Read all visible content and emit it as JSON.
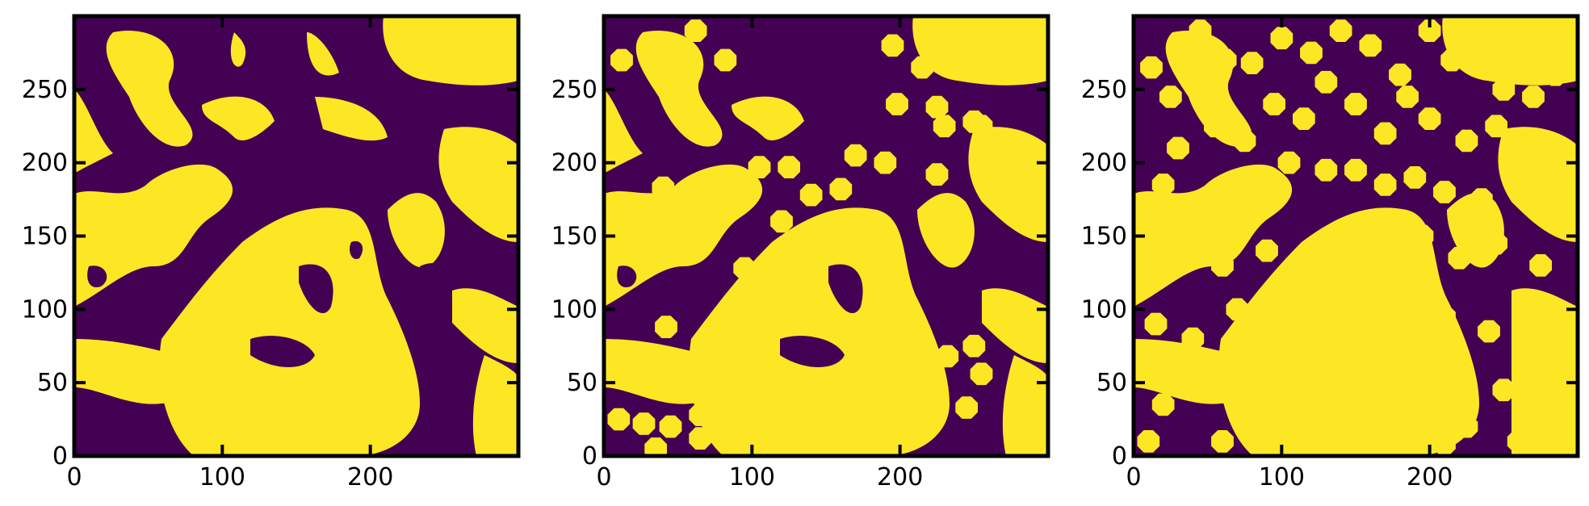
{
  "figure": {
    "panel_count": 3,
    "colors": {
      "background_phase": "#440154",
      "foreground_phase": "#fde725",
      "axes": "#000000"
    }
  },
  "chart_data": [
    {
      "type": "heatmap",
      "title": "",
      "xlabel": "",
      "ylabel": "",
      "xlim": [
        0,
        300
      ],
      "ylim": [
        0,
        300
      ],
      "xticks": [
        "0",
        "100",
        "200"
      ],
      "yticks": [
        "0",
        "50",
        "100",
        "150",
        "200",
        "250"
      ],
      "grid": false,
      "colormap_values": [
        0,
        1
      ],
      "particles": []
    },
    {
      "type": "heatmap",
      "title": "",
      "xlabel": "",
      "ylabel": "",
      "xlim": [
        0,
        300
      ],
      "ylim": [
        0,
        300
      ],
      "xticks": [
        "0",
        "100",
        "200"
      ],
      "yticks": [
        "0",
        "50",
        "100",
        "150",
        "200",
        "250"
      ],
      "grid": false,
      "colormap_values": [
        0,
        1
      ],
      "particles": [
        {
          "x": 12,
          "y": 270
        },
        {
          "x": 62,
          "y": 290
        },
        {
          "x": 82,
          "y": 270
        },
        {
          "x": 40,
          "y": 183
        },
        {
          "x": 80,
          "y": 183
        },
        {
          "x": 105,
          "y": 197
        },
        {
          "x": 125,
          "y": 197
        },
        {
          "x": 140,
          "y": 178
        },
        {
          "x": 160,
          "y": 182
        },
        {
          "x": 120,
          "y": 160
        },
        {
          "x": 170,
          "y": 205
        },
        {
          "x": 190,
          "y": 200
        },
        {
          "x": 195,
          "y": 280
        },
        {
          "x": 215,
          "y": 265
        },
        {
          "x": 198,
          "y": 240
        },
        {
          "x": 225,
          "y": 238
        },
        {
          "x": 230,
          "y": 225
        },
        {
          "x": 250,
          "y": 228
        },
        {
          "x": 225,
          "y": 192
        },
        {
          "x": 255,
          "y": 225
        },
        {
          "x": 105,
          "y": 115
        },
        {
          "x": 125,
          "y": 118
        },
        {
          "x": 120,
          "y": 130
        },
        {
          "x": 95,
          "y": 128
        },
        {
          "x": 42,
          "y": 88
        },
        {
          "x": 232,
          "y": 68
        },
        {
          "x": 250,
          "y": 75
        },
        {
          "x": 255,
          "y": 56
        },
        {
          "x": 245,
          "y": 33
        },
        {
          "x": 10,
          "y": 25
        },
        {
          "x": 27,
          "y": 22
        },
        {
          "x": 45,
          "y": 20
        },
        {
          "x": 65,
          "y": 28
        },
        {
          "x": 65,
          "y": 12
        },
        {
          "x": 35,
          "y": 5
        }
      ]
    },
    {
      "type": "heatmap",
      "title": "",
      "xlabel": "",
      "ylabel": "",
      "xlim": [
        0,
        300
      ],
      "ylim": [
        0,
        300
      ],
      "xticks": [
        "0",
        "100",
        "200"
      ],
      "yticks": [
        "0",
        "50",
        "100",
        "150",
        "200",
        "250"
      ],
      "grid": false,
      "colormap_values": [
        0,
        1
      ],
      "particles": [
        {
          "x": 12,
          "y": 265
        },
        {
          "x": 25,
          "y": 245
        },
        {
          "x": 45,
          "y": 290
        },
        {
          "x": 62,
          "y": 270
        },
        {
          "x": 80,
          "y": 268
        },
        {
          "x": 100,
          "y": 285
        },
        {
          "x": 120,
          "y": 275
        },
        {
          "x": 140,
          "y": 290
        },
        {
          "x": 160,
          "y": 280
        },
        {
          "x": 180,
          "y": 260
        },
        {
          "x": 200,
          "y": 290
        },
        {
          "x": 215,
          "y": 270
        },
        {
          "x": 235,
          "y": 280
        },
        {
          "x": 250,
          "y": 250
        },
        {
          "x": 270,
          "y": 245
        },
        {
          "x": 285,
          "y": 260
        },
        {
          "x": 30,
          "y": 210
        },
        {
          "x": 55,
          "y": 225
        },
        {
          "x": 75,
          "y": 215
        },
        {
          "x": 95,
          "y": 240
        },
        {
          "x": 115,
          "y": 230
        },
        {
          "x": 130,
          "y": 255
        },
        {
          "x": 150,
          "y": 240
        },
        {
          "x": 170,
          "y": 220
        },
        {
          "x": 185,
          "y": 245
        },
        {
          "x": 200,
          "y": 230
        },
        {
          "x": 225,
          "y": 215
        },
        {
          "x": 245,
          "y": 225
        },
        {
          "x": 265,
          "y": 215
        },
        {
          "x": 20,
          "y": 185
        },
        {
          "x": 50,
          "y": 170
        },
        {
          "x": 85,
          "y": 190
        },
        {
          "x": 105,
          "y": 200
        },
        {
          "x": 130,
          "y": 195
        },
        {
          "x": 150,
          "y": 195
        },
        {
          "x": 170,
          "y": 185
        },
        {
          "x": 190,
          "y": 190
        },
        {
          "x": 210,
          "y": 180
        },
        {
          "x": 235,
          "y": 175
        },
        {
          "x": 260,
          "y": 185
        },
        {
          "x": 280,
          "y": 165
        },
        {
          "x": 30,
          "y": 140
        },
        {
          "x": 60,
          "y": 130
        },
        {
          "x": 90,
          "y": 140
        },
        {
          "x": 115,
          "y": 125
        },
        {
          "x": 140,
          "y": 150
        },
        {
          "x": 165,
          "y": 160
        },
        {
          "x": 195,
          "y": 150
        },
        {
          "x": 220,
          "y": 135
        },
        {
          "x": 245,
          "y": 145
        },
        {
          "x": 275,
          "y": 130
        },
        {
          "x": 15,
          "y": 90
        },
        {
          "x": 40,
          "y": 80
        },
        {
          "x": 70,
          "y": 100
        },
        {
          "x": 100,
          "y": 95
        },
        {
          "x": 130,
          "y": 90
        },
        {
          "x": 160,
          "y": 80
        },
        {
          "x": 185,
          "y": 100
        },
        {
          "x": 210,
          "y": 95
        },
        {
          "x": 240,
          "y": 85
        },
        {
          "x": 265,
          "y": 70
        },
        {
          "x": 285,
          "y": 90
        },
        {
          "x": 20,
          "y": 35
        },
        {
          "x": 45,
          "y": 45
        },
        {
          "x": 75,
          "y": 25
        },
        {
          "x": 100,
          "y": 40
        },
        {
          "x": 125,
          "y": 20
        },
        {
          "x": 150,
          "y": 45
        },
        {
          "x": 175,
          "y": 30
        },
        {
          "x": 200,
          "y": 45
        },
        {
          "x": 225,
          "y": 20
        },
        {
          "x": 250,
          "y": 45
        },
        {
          "x": 275,
          "y": 25
        },
        {
          "x": 10,
          "y": 10
        },
        {
          "x": 60,
          "y": 10
        },
        {
          "x": 110,
          "y": 8
        },
        {
          "x": 160,
          "y": 10
        },
        {
          "x": 210,
          "y": 8
        },
        {
          "x": 260,
          "y": 10
        },
        {
          "x": 290,
          "y": 50
        }
      ]
    }
  ]
}
